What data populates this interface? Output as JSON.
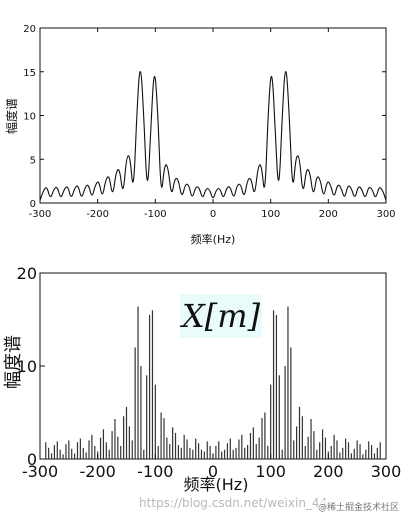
{
  "chart_data": [
    {
      "type": "line",
      "title": "",
      "xlabel": "频率(Hz)",
      "ylabel": "幅度谱",
      "xlim": [
        -300,
        300
      ],
      "ylim": [
        0,
        20
      ],
      "x_ticks": [
        "-300",
        "-200",
        "-100",
        "0",
        "100",
        "200",
        "300"
      ],
      "y_ticks": [
        "0",
        "5",
        "10",
        "15",
        "20"
      ],
      "grid": false,
      "series": [
        {
          "x": [
            -300,
            -294,
            -288,
            -282,
            -276,
            -270,
            -264,
            -258,
            -252,
            -246,
            -240,
            -234,
            -228,
            -222,
            -216,
            -210,
            -204,
            -198,
            -192,
            -186,
            -180,
            -174,
            -168,
            -162,
            -156,
            -150,
            -144,
            -138,
            -132,
            -126,
            -120,
            -114,
            -108,
            -102,
            -96,
            -90,
            -84,
            -78,
            -72,
            -66,
            -60,
            -54,
            -48,
            -42,
            -36,
            -30,
            -24,
            -18,
            -12,
            -6,
            0,
            6,
            12,
            18,
            24,
            30,
            36,
            42,
            48,
            54,
            60,
            66,
            72,
            78,
            84,
            90,
            96,
            102,
            108,
            114,
            120,
            126,
            132,
            138,
            144,
            150,
            156,
            162,
            168,
            174,
            180,
            186,
            192,
            198,
            204,
            210,
            216,
            222,
            228,
            234,
            240,
            246,
            252,
            258,
            264,
            270,
            276,
            282,
            288,
            294,
            300
          ],
          "y": [
            0.3,
            1.5,
            1.9,
            0.4,
            1.6,
            1.9,
            0.4,
            1.6,
            2.0,
            0.4,
            1.7,
            2.1,
            0.4,
            1.8,
            2.2,
            0.5,
            2.1,
            2.6,
            0.5,
            2.7,
            3.2,
            0.6,
            3.6,
            4.0,
            0.7,
            5.3,
            5.5,
            0.8,
            10.5,
            16.6,
            10.0,
            0.5,
            8.0,
            16.0,
            11.0,
            0.3,
            4.5,
            4.2,
            0.6,
            2.9,
            2.7,
            0.5,
            2.2,
            2.1,
            0.4,
            1.9,
            1.8,
            0.4,
            1.7,
            1.6,
            0.3,
            1.6,
            1.7,
            0.4,
            1.8,
            1.9,
            0.4,
            2.1,
            2.2,
            0.5,
            2.7,
            2.9,
            0.6,
            4.2,
            4.5,
            0.3,
            11.0,
            16.0,
            8.0,
            0.5,
            10.0,
            16.6,
            10.5,
            0.8,
            5.5,
            5.3,
            0.7,
            4.0,
            3.6,
            0.6,
            3.2,
            2.7,
            0.5,
            2.6,
            2.1,
            0.5,
            2.2,
            1.8,
            0.4,
            2.1,
            1.7,
            0.4,
            2.0,
            1.6,
            0.4,
            1.9,
            1.6,
            0.4,
            1.9,
            1.5,
            0.3
          ]
        }
      ]
    },
    {
      "type": "bar",
      "title": "X[m]",
      "xlabel": "频率(Hz)",
      "ylabel": "幅度谱",
      "xlim": [
        -300,
        300
      ],
      "ylim": [
        0,
        20
      ],
      "x_ticks": [
        "-300",
        "-200",
        "-100",
        "0",
        "100",
        "200",
        "300"
      ],
      "y_ticks": [
        "0",
        "10",
        "20"
      ],
      "grid": false,
      "stem_x": [
        -290,
        -285,
        -280,
        -275,
        -270,
        -265,
        -260,
        -255,
        -250,
        -245,
        -240,
        -235,
        -230,
        -225,
        -220,
        -215,
        -210,
        -205,
        -200,
        -195,
        -190,
        -185,
        -180,
        -175,
        -170,
        -165,
        -160,
        -155,
        -150,
        -145,
        -140,
        -135,
        -130,
        -125,
        -120,
        -115,
        -110,
        -105,
        -100,
        -95,
        -90,
        -85,
        -80,
        -75,
        -70,
        -65,
        -60,
        -55,
        -50,
        -45,
        -40,
        -35,
        -30,
        -25,
        -20,
        -15,
        -10,
        -5,
        0,
        5,
        10,
        15,
        20,
        25,
        30,
        35,
        40,
        45,
        50,
        55,
        60,
        65,
        70,
        75,
        80,
        85,
        90,
        95,
        100,
        105,
        110,
        115,
        120,
        125,
        130,
        135,
        140,
        145,
        150,
        155,
        160,
        165,
        170,
        175,
        180,
        185,
        190,
        195,
        200,
        205,
        210,
        215,
        220,
        225,
        230,
        235,
        240,
        245,
        250,
        255,
        260,
        265,
        270,
        275,
        280,
        285,
        290
      ],
      "stem_y": [
        1.8,
        1.2,
        0.6,
        1.5,
        1.9,
        1.0,
        0.5,
        1.6,
        2.0,
        1.1,
        0.6,
        1.8,
        2.2,
        1.2,
        0.7,
        2.0,
        2.6,
        1.4,
        0.8,
        2.3,
        3.2,
        1.8,
        1.0,
        3.0,
        4.3,
        2.4,
        1.4,
        4.6,
        5.6,
        3.5,
        2.0,
        12.0,
        16.4,
        10.0,
        1.0,
        9.0,
        15.5,
        16.0,
        8.0,
        1.4,
        5.0,
        4.4,
        2.3,
        1.6,
        3.4,
        2.8,
        1.5,
        1.2,
        2.6,
        2.1,
        1.2,
        1.0,
        2.2,
        1.7,
        1.0,
        0.8,
        1.9,
        1.4,
        0.6,
        1.4,
        1.9,
        0.8,
        1.0,
        1.7,
        2.2,
        1.0,
        1.2,
        2.1,
        2.6,
        1.2,
        1.5,
        2.8,
        3.4,
        1.6,
        2.3,
        4.4,
        5.0,
        1.4,
        8.0,
        16.0,
        15.5,
        9.0,
        1.0,
        10.0,
        16.4,
        12.0,
        2.0,
        3.5,
        5.6,
        4.6,
        1.4,
        2.4,
        4.3,
        3.0,
        1.0,
        1.8,
        3.2,
        2.3,
        0.8,
        1.4,
        2.6,
        2.0,
        0.7,
        1.2,
        2.2,
        1.8,
        0.6,
        1.1,
        2.0,
        1.6,
        0.5,
        1.0,
        1.9,
        1.5,
        0.6,
        1.2,
        1.8
      ]
    }
  ],
  "annotation": "X[m]",
  "watermark": "https://blog.csdn.net/weixin_44",
  "badge": "@稀土掘金技术社区"
}
